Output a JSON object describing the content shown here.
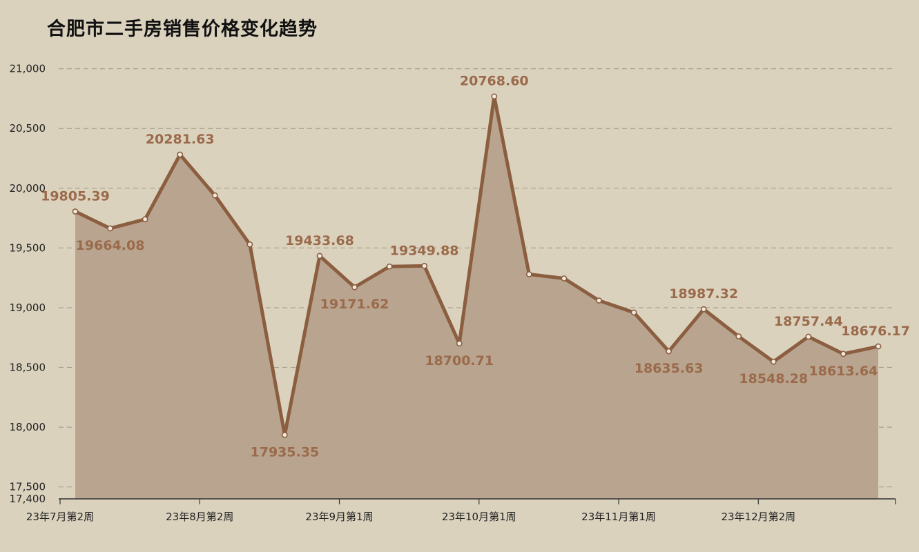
{
  "chart_data": {
    "type": "area",
    "title": "合肥市二手房销售价格变化趋势",
    "xlabel": "",
    "ylabel": "",
    "ylim": [
      17400,
      21000
    ],
    "y_ticks": [
      "17,400",
      "17,500",
      "18,000",
      "18,500",
      "19,000",
      "19,500",
      "20,000",
      "20,500",
      "21,000"
    ],
    "y_tick_values": [
      17400,
      17500,
      18000,
      18500,
      19000,
      19500,
      20000,
      20500,
      21000
    ],
    "x_tick_labels": [
      {
        "index": 0,
        "label": "23年7月第2周"
      },
      {
        "index": 4,
        "label": "23年8月第2周"
      },
      {
        "index": 8,
        "label": "23年9月第1周"
      },
      {
        "index": 12,
        "label": "23年10月第1周"
      },
      {
        "index": 16,
        "label": "23年11月第1周"
      },
      {
        "index": 20,
        "label": "23年12月第2周"
      }
    ],
    "values": [
      19805.39,
      19664.08,
      19740,
      20281.63,
      19940,
      19530,
      17935.35,
      19433.68,
      19171.62,
      19345,
      19349.88,
      18700.71,
      20768.6,
      19280,
      19245,
      19060,
      18960,
      18635.63,
      18987.32,
      18760,
      18548.28,
      18757.44,
      18613.64,
      18676.17
    ],
    "data_labels": [
      {
        "index": 0,
        "text": "19805.39",
        "pos": "above"
      },
      {
        "index": 1,
        "text": "19664.08",
        "pos": "below"
      },
      {
        "index": 3,
        "text": "20281.63",
        "pos": "above"
      },
      {
        "index": 6,
        "text": "17935.35",
        "pos": "below"
      },
      {
        "index": 7,
        "text": "19433.68",
        "pos": "above"
      },
      {
        "index": 8,
        "text": "19171.62",
        "pos": "below"
      },
      {
        "index": 10,
        "text": "19349.88",
        "pos": "above"
      },
      {
        "index": 11,
        "text": "18700.71",
        "pos": "below"
      },
      {
        "index": 12,
        "text": "20768.60",
        "pos": "above"
      },
      {
        "index": 17,
        "text": "18635.63",
        "pos": "below"
      },
      {
        "index": 18,
        "text": "18987.32",
        "pos": "above"
      },
      {
        "index": 20,
        "text": "18548.28",
        "pos": "below"
      },
      {
        "index": 21,
        "text": "18757.44",
        "pos": "above"
      },
      {
        "index": 22,
        "text": "18613.64",
        "pos": "below"
      },
      {
        "index": 23,
        "text": "18676.17",
        "pos": "above"
      }
    ],
    "grid": true,
    "legend": "none",
    "colors": {
      "background": "#dbd2be",
      "line": "#8b5e40",
      "fill": "#b9a48f",
      "marker_fill": "#f2ebdf",
      "label": "#9a6a4b",
      "grid": "#a89f8e"
    }
  }
}
